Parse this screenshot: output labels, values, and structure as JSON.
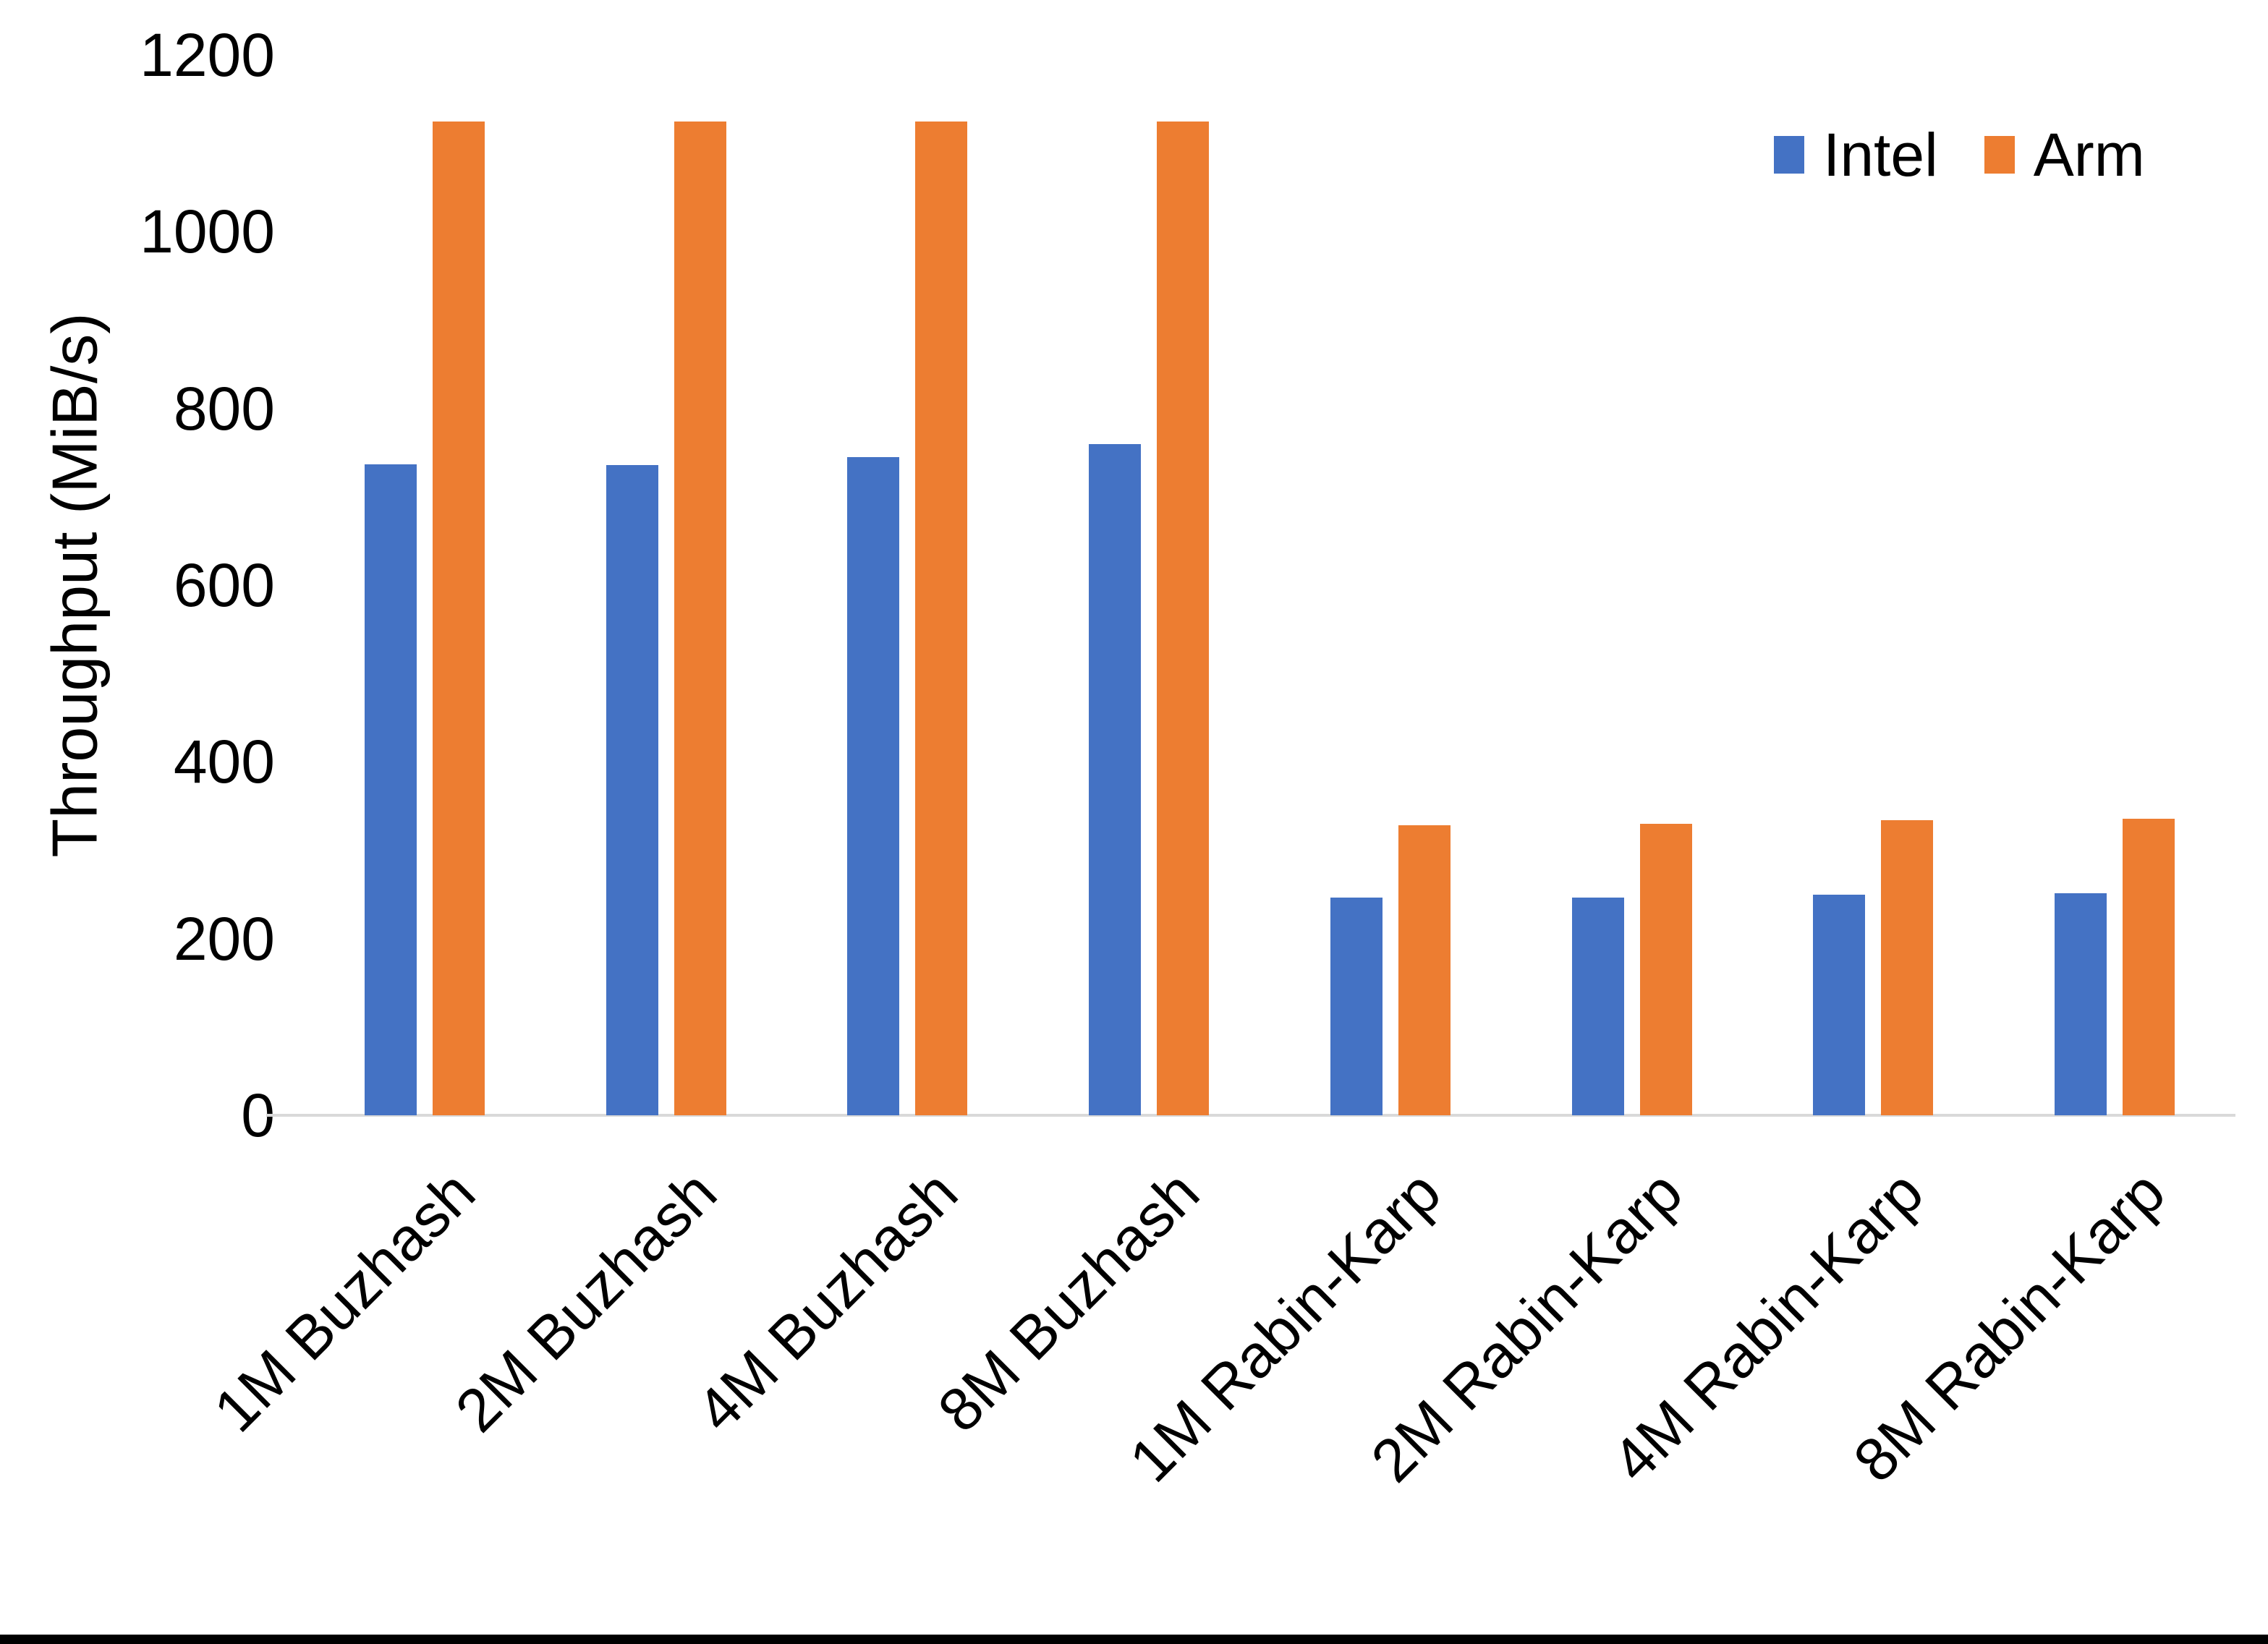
{
  "figure": {
    "background": "#FFFFFF",
    "bottom_border_color": "#000000",
    "axis_line_color": "#D9D9D9"
  },
  "chart_data": {
    "type": "bar",
    "title": "",
    "xlabel": "",
    "ylabel": "Throughput (MiB/s)",
    "ylim": [
      0,
      1200
    ],
    "yticks": [
      0,
      200,
      400,
      600,
      800,
      1000,
      1200
    ],
    "grid": false,
    "legend_position": "top-right",
    "categories": [
      "1M Buzhash",
      "2M Buzhash",
      "4M Buzhash",
      "8M Buzhash",
      "1M Rabin-Karp",
      "2M Rabin-Karp",
      "4M Rabin-Karp",
      "8M Rabin-Karp"
    ],
    "series": [
      {
        "name": "Intel",
        "color": "#4472C4",
        "values": [
          737,
          736,
          745,
          760,
          246,
          246,
          250,
          251
        ]
      },
      {
        "name": "Arm",
        "color": "#ED7D31",
        "values": [
          1125,
          1125,
          1125,
          1125,
          328,
          330,
          334,
          336
        ]
      }
    ]
  }
}
